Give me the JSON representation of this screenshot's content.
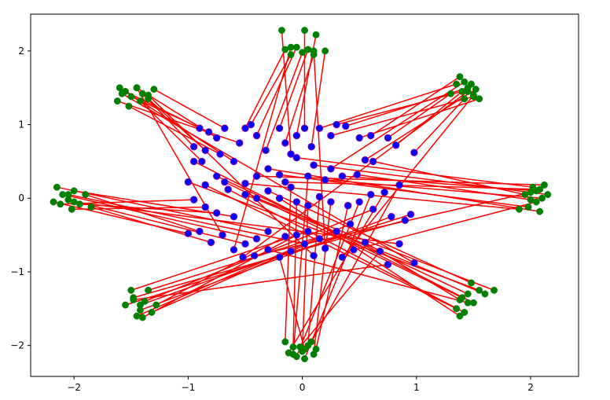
{
  "chart_data": {
    "type": "scatter",
    "title": "",
    "xlabel": "",
    "ylabel": "",
    "xlim": [
      -2.38,
      2.42
    ],
    "ylim": [
      -2.42,
      2.5
    ],
    "grid": false,
    "legend": "none",
    "x_ticks": [
      {
        "value": -2,
        "label": "−2"
      },
      {
        "value": -1,
        "label": "−1"
      },
      {
        "value": 0,
        "label": "0"
      },
      {
        "value": 1,
        "label": "1"
      },
      {
        "value": 2,
        "label": "2"
      }
    ],
    "y_ticks": [
      {
        "value": 2,
        "label": "2"
      },
      {
        "value": 1,
        "label": "1"
      },
      {
        "value": 0,
        "label": "0"
      },
      {
        "value": -1,
        "label": "−1"
      },
      {
        "value": -2,
        "label": "−2"
      }
    ],
    "colors": {
      "source_points": "#0000ff",
      "target_points": "#008000",
      "connecting_lines": "#ff0000",
      "source_edge": "#7f00aa"
    },
    "series": [
      {
        "role": "source",
        "color": "#0000ff",
        "points": [
          [
            -0.9,
            0.95
          ],
          [
            -0.82,
            0.9
          ],
          [
            -0.75,
            0.82
          ],
          [
            -0.95,
            0.7
          ],
          [
            -0.85,
            0.65
          ],
          [
            -0.68,
            0.95
          ],
          [
            -0.6,
            0.5
          ],
          [
            -0.72,
            0.6
          ],
          [
            -0.88,
            0.5
          ],
          [
            -0.55,
            0.75
          ],
          [
            -0.5,
            0.95
          ],
          [
            -0.45,
            1.0
          ],
          [
            -0.4,
            0.85
          ],
          [
            -0.32,
            0.65
          ],
          [
            -0.2,
            0.95
          ],
          [
            -0.15,
            0.75
          ],
          [
            -0.1,
            0.6
          ],
          [
            -0.05,
            0.85
          ],
          [
            0.02,
            0.95
          ],
          [
            0.08,
            0.7
          ],
          [
            0.15,
            0.95
          ],
          [
            0.3,
            1.0
          ],
          [
            0.38,
            0.98
          ],
          [
            0.25,
            0.85
          ],
          [
            0.5,
            0.82
          ],
          [
            0.6,
            0.85
          ],
          [
            0.75,
            0.82
          ],
          [
            0.82,
            0.72
          ],
          [
            0.98,
            0.62
          ],
          [
            0.55,
            0.52
          ],
          [
            0.62,
            0.5
          ],
          [
            0.48,
            0.32
          ],
          [
            0.35,
            0.3
          ],
          [
            0.2,
            0.25
          ],
          [
            0.1,
            0.45
          ],
          [
            -0.05,
            0.55
          ],
          [
            -0.2,
            0.32
          ],
          [
            -0.3,
            0.4
          ],
          [
            -0.4,
            0.3
          ],
          [
            -0.5,
            0.2
          ],
          [
            -0.68,
            0.22
          ],
          [
            -0.75,
            0.3
          ],
          [
            -0.95,
            0.5
          ],
          [
            -1.0,
            0.22
          ],
          [
            -0.85,
            0.18
          ],
          [
            -0.65,
            0.12
          ],
          [
            -0.5,
            0.05
          ],
          [
            -0.4,
            0.0
          ],
          [
            -0.3,
            0.1
          ],
          [
            -0.2,
            0.0
          ],
          [
            -0.1,
            0.15
          ],
          [
            -0.05,
            -0.05
          ],
          [
            0.05,
            -0.1
          ],
          [
            0.15,
            0.02
          ],
          [
            0.25,
            -0.05
          ],
          [
            0.4,
            -0.1
          ],
          [
            0.5,
            -0.05
          ],
          [
            0.6,
            0.05
          ],
          [
            0.72,
            0.08
          ],
          [
            0.85,
            0.18
          ],
          [
            0.95,
            -0.22
          ],
          [
            0.9,
            -0.3
          ],
          [
            0.78,
            -0.25
          ],
          [
            0.62,
            -0.15
          ],
          [
            0.42,
            -0.35
          ],
          [
            0.3,
            -0.45
          ],
          [
            0.15,
            -0.55
          ],
          [
            0.05,
            -0.45
          ],
          [
            -0.05,
            -0.5
          ],
          [
            -0.15,
            -0.52
          ],
          [
            -0.3,
            -0.45
          ],
          [
            -0.4,
            -0.55
          ],
          [
            -0.5,
            -0.62
          ],
          [
            -0.6,
            -0.25
          ],
          [
            -0.75,
            -0.2
          ],
          [
            -0.85,
            -0.12
          ],
          [
            -0.95,
            -0.02
          ],
          [
            -1.0,
            -0.48
          ],
          [
            -0.9,
            -0.45
          ],
          [
            -0.8,
            -0.6
          ],
          [
            -0.7,
            -0.5
          ],
          [
            -0.6,
            -0.7
          ],
          [
            -0.52,
            -0.8
          ],
          [
            -0.42,
            -0.78
          ],
          [
            -0.3,
            -0.7
          ],
          [
            -0.2,
            -0.8
          ],
          [
            -0.1,
            -0.72
          ],
          [
            0.02,
            -0.62
          ],
          [
            0.1,
            -0.78
          ],
          [
            0.2,
            -0.68
          ],
          [
            0.35,
            -0.8
          ],
          [
            0.45,
            -0.7
          ],
          [
            0.55,
            -0.6
          ],
          [
            0.68,
            -0.72
          ],
          [
            0.75,
            -0.9
          ],
          [
            0.85,
            -0.62
          ],
          [
            0.98,
            -0.88
          ],
          [
            0.25,
            0.4
          ],
          [
            -0.15,
            0.22
          ],
          [
            0.05,
            0.3
          ]
        ]
      },
      {
        "role": "target",
        "color": "#008000",
        "points": [
          [
            -1.55,
            1.45
          ],
          [
            -1.5,
            1.38
          ],
          [
            -1.45,
            1.5
          ],
          [
            -1.4,
            1.42
          ],
          [
            -1.35,
            1.35
          ],
          [
            -1.3,
            1.48
          ],
          [
            -1.6,
            1.5
          ],
          [
            -1.52,
            1.25
          ],
          [
            -1.42,
            1.32
          ],
          [
            -1.62,
            1.32
          ],
          [
            -0.15,
            2.02
          ],
          [
            -0.1,
            1.95
          ],
          [
            -0.05,
            2.05
          ],
          [
            0.0,
            1.98
          ],
          [
            0.05,
            2.02
          ],
          [
            0.1,
            1.95
          ],
          [
            -0.18,
            2.28
          ],
          [
            0.12,
            2.22
          ],
          [
            0.02,
            2.28
          ],
          [
            0.2,
            2.0
          ],
          [
            1.35,
            1.55
          ],
          [
            1.4,
            1.45
          ],
          [
            1.45,
            1.5
          ],
          [
            1.5,
            1.38
          ],
          [
            1.55,
            1.35
          ],
          [
            1.38,
            1.65
          ],
          [
            1.3,
            1.42
          ],
          [
            1.48,
            1.55
          ],
          [
            1.42,
            1.35
          ],
          [
            1.52,
            1.48
          ],
          [
            1.95,
            0.05
          ],
          [
            2.0,
            -0.02
          ],
          [
            2.05,
            0.1
          ],
          [
            2.1,
            0.0
          ],
          [
            2.15,
            0.05
          ],
          [
            2.02,
            0.15
          ],
          [
            1.98,
            -0.12
          ],
          [
            2.08,
            -0.18
          ],
          [
            2.12,
            0.18
          ],
          [
            1.9,
            -0.15
          ],
          [
            1.4,
            -1.35
          ],
          [
            1.45,
            -1.3
          ],
          [
            1.5,
            -1.42
          ],
          [
            1.55,
            -1.25
          ],
          [
            1.35,
            -1.5
          ],
          [
            1.42,
            -1.55
          ],
          [
            1.6,
            -1.3
          ],
          [
            1.68,
            -1.25
          ],
          [
            1.48,
            -1.15
          ],
          [
            1.38,
            -1.6
          ],
          [
            -0.15,
            -1.95
          ],
          [
            -0.08,
            -2.02
          ],
          [
            0.0,
            -2.08
          ],
          [
            0.05,
            -2.0
          ],
          [
            0.1,
            -2.12
          ],
          [
            0.12,
            -2.05
          ],
          [
            -0.05,
            -2.15
          ],
          [
            0.02,
            -2.18
          ],
          [
            -0.12,
            -2.1
          ],
          [
            0.08,
            -1.95
          ],
          [
            -1.55,
            -1.45
          ],
          [
            -1.48,
            -1.35
          ],
          [
            -1.42,
            -1.52
          ],
          [
            -1.38,
            -1.4
          ],
          [
            -1.45,
            -1.6
          ],
          [
            -1.35,
            -1.25
          ],
          [
            -1.32,
            -1.55
          ],
          [
            -1.5,
            -1.25
          ],
          [
            -1.4,
            -1.62
          ],
          [
            -1.28,
            -1.45
          ],
          [
            -2.15,
            0.15
          ],
          [
            -2.1,
            0.05
          ],
          [
            -2.05,
            -0.02
          ],
          [
            -2.0,
            0.1
          ],
          [
            -1.95,
            -0.08
          ],
          [
            -2.02,
            -0.15
          ],
          [
            -2.12,
            -0.08
          ],
          [
            -2.18,
            -0.05
          ],
          [
            -1.9,
            0.05
          ],
          [
            -1.85,
            -0.12
          ],
          [
            -1.45,
            1.5
          ],
          [
            -0.1,
            2.05
          ],
          [
            1.45,
            1.45
          ],
          [
            2.0,
            0.08
          ],
          [
            1.45,
            -1.42
          ],
          [
            0.02,
            -2.05
          ],
          [
            -1.42,
            -1.45
          ],
          [
            -2.05,
            0.05
          ],
          [
            -1.35,
            1.4
          ],
          [
            0.1,
            2.0
          ],
          [
            1.5,
            1.4
          ],
          [
            2.05,
            -0.05
          ],
          [
            1.38,
            -1.38
          ],
          [
            -0.02,
            -2.02
          ],
          [
            -1.48,
            -1.38
          ],
          [
            -2.0,
            -0.05
          ],
          [
            -1.58,
            1.42
          ],
          [
            1.42,
            1.58
          ],
          [
            2.08,
            0.12
          ],
          [
            -0.08,
            -2.12
          ]
        ]
      }
    ]
  }
}
